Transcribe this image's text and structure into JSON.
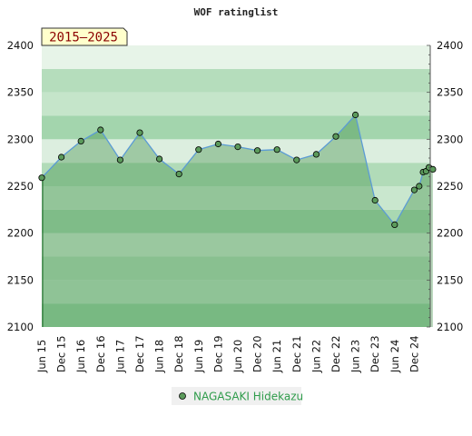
{
  "chart_data": {
    "type": "area",
    "title": "WOF ratinglist",
    "range_label": "2015–2025",
    "xlabel": "",
    "ylabel": "",
    "ylim": [
      2100,
      2400
    ],
    "y_ticks": [
      2100,
      2150,
      2200,
      2250,
      2300,
      2350,
      2400
    ],
    "x_tick_labels": [
      "Jun 15",
      "Dec 15",
      "Jun 16",
      "Dec 16",
      "Jun 17",
      "Dec 17",
      "Jun 18",
      "Dec 18",
      "Jun 19",
      "Dec 19",
      "Jun 20",
      "Dec 20",
      "Jun 21",
      "Dec 21",
      "Jun 22",
      "Dec 22",
      "Jun 23",
      "Dec 23",
      "Jun 24",
      "Dec 24"
    ],
    "legend_position": "bottom-center",
    "grid": false,
    "series": [
      {
        "name": "NAGASAKI Hidekazu",
        "color": "#5b9a5b",
        "line_color": "#5b9bd5",
        "points": [
          {
            "x": 0,
            "y": 2259
          },
          {
            "x": 1,
            "y": 2281
          },
          {
            "x": 2,
            "y": 2298
          },
          {
            "x": 3,
            "y": 2310
          },
          {
            "x": 4,
            "y": 2278
          },
          {
            "x": 5,
            "y": 2307
          },
          {
            "x": 6,
            "y": 2279
          },
          {
            "x": 7,
            "y": 2263
          },
          {
            "x": 8,
            "y": 2289
          },
          {
            "x": 9,
            "y": 2295
          },
          {
            "x": 10,
            "y": 2292
          },
          {
            "x": 11,
            "y": 2288
          },
          {
            "x": 12,
            "y": 2289
          },
          {
            "x": 13,
            "y": 2278
          },
          {
            "x": 14,
            "y": 2284
          },
          {
            "x": 15,
            "y": 2303
          },
          {
            "x": 16,
            "y": 2326
          },
          {
            "x": 17,
            "y": 2235
          },
          {
            "x": 18,
            "y": 2209
          },
          {
            "x": 19,
            "y": 2246
          },
          {
            "x": 19.25,
            "y": 2250
          },
          {
            "x": 19.45,
            "y": 2265
          },
          {
            "x": 19.6,
            "y": 2266
          },
          {
            "x": 19.75,
            "y": 2270
          },
          {
            "x": 19.95,
            "y": 2268
          }
        ]
      }
    ]
  }
}
